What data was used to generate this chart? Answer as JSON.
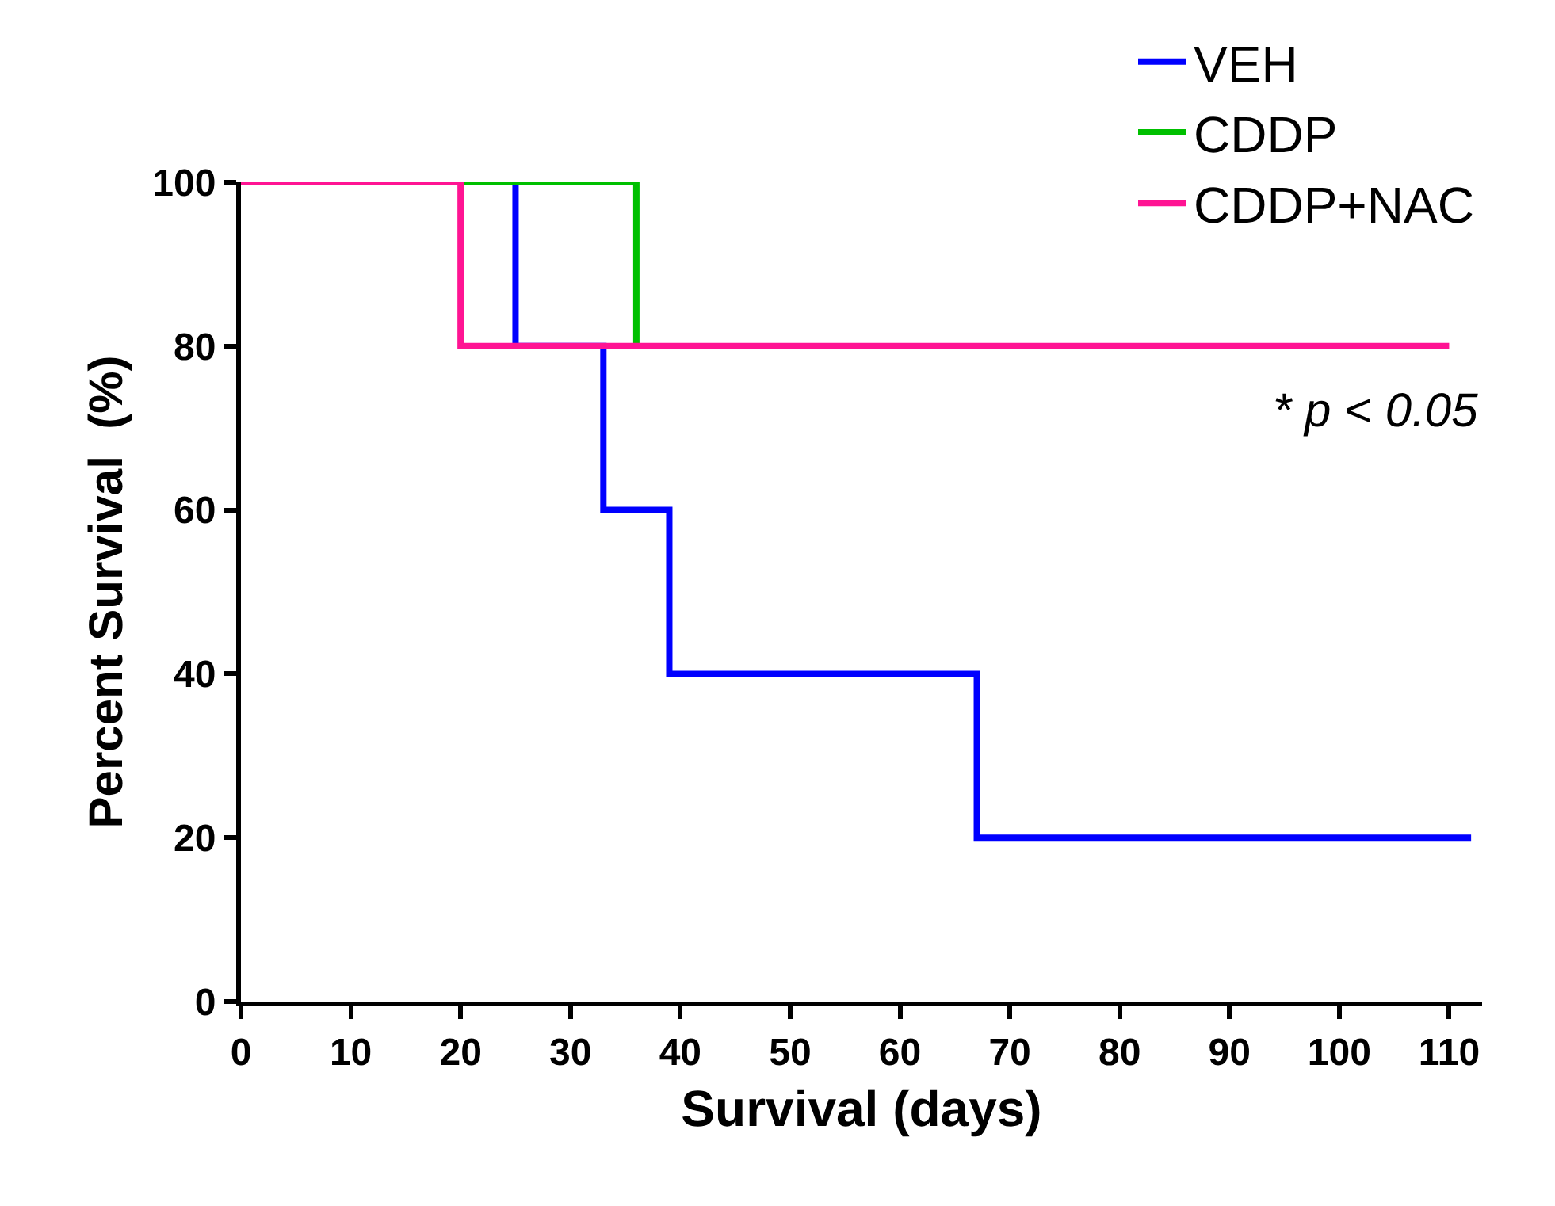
{
  "chart_data": {
    "type": "step",
    "xlabel": "Survival (days)",
    "ylabel": "Percent Survival  (%)",
    "series": [
      {
        "name": "VEH",
        "color": "#0000ff",
        "x": [
          0,
          25,
          33,
          39,
          67,
          112
        ],
        "values": [
          100,
          80,
          60,
          40,
          20,
          20
        ]
      },
      {
        "name": "CDDP",
        "color": "#00c000",
        "x": [
          20,
          36
        ],
        "values": [
          100,
          80
        ]
      },
      {
        "name": "CDDP+NAC",
        "color": "#ff1493",
        "x": [
          0,
          20,
          110
        ],
        "values": [
          100,
          80,
          80
        ]
      }
    ],
    "xlim": [
      0,
      113
    ],
    "xticks": [
      0,
      10,
      20,
      30,
      40,
      50,
      60,
      70,
      80,
      90,
      100,
      110
    ],
    "ylim": [
      0,
      100
    ],
    "yticks": [
      0,
      20,
      40,
      60,
      80,
      100
    ],
    "annotations": [
      "* p < 0.05"
    ],
    "grid": false,
    "legend": "top right",
    "marker": "none",
    "line_style": "solid"
  }
}
